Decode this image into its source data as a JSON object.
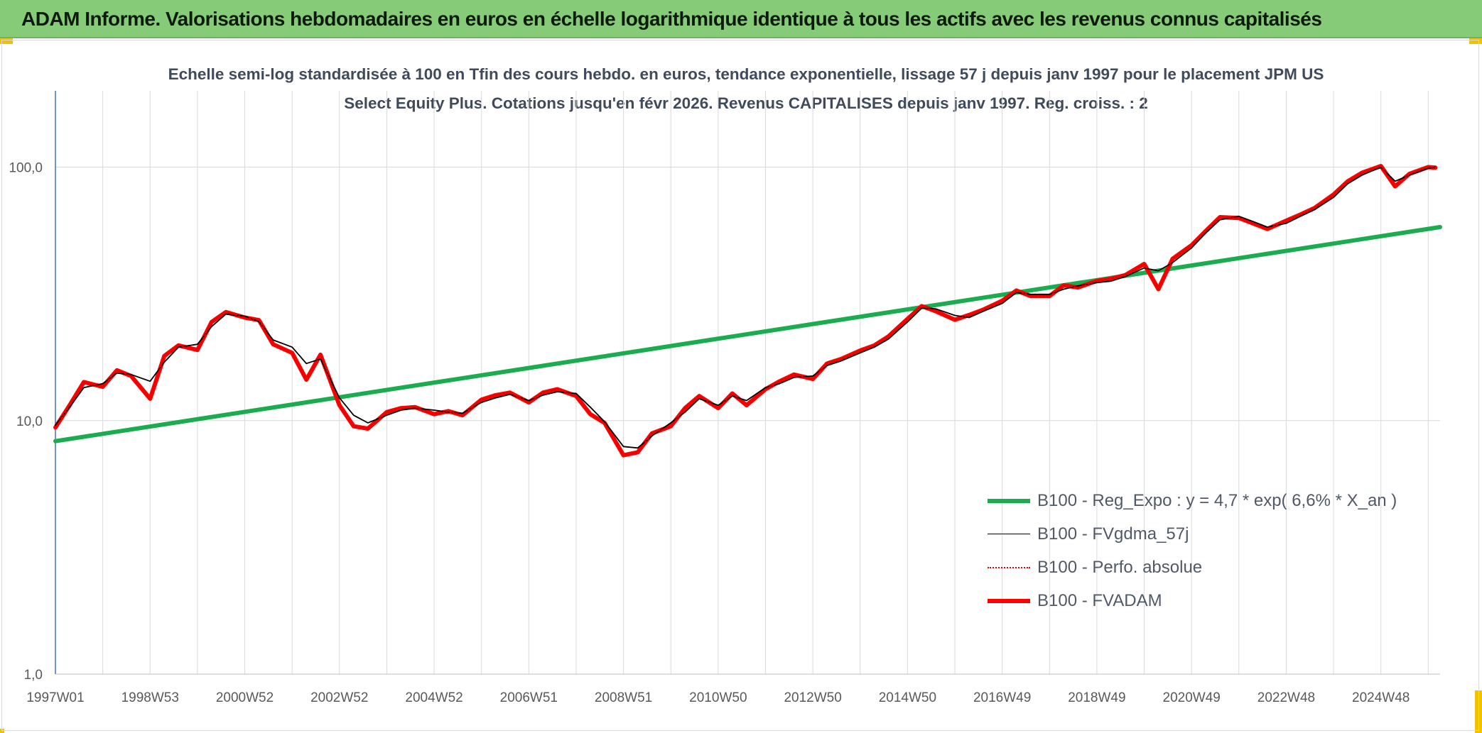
{
  "header": {
    "title": "ADAM Informe. Valorisations hebdomadaires en euros en échelle logarithmique identique à tous les actifs avec les revenus connus capitalisés"
  },
  "chart_data": {
    "type": "line",
    "title": "Echelle semi-log standardisée à 100 en Tfin des cours hebdo. en euros, tendance exponentielle, lissage 57 j depuis janv 1997 pour le placement JPM US Select Equity Plus. Cotations jusqu'en févr 2026. Revenus CAPITALISES depuis janv 1997. Reg. croiss. : 2",
    "xlabel": "",
    "ylabel": "",
    "y_scale": "log",
    "ylim": [
      1,
      200
    ],
    "y_ticks": [
      "1,0",
      "10,0",
      "100,0"
    ],
    "xlim": [
      1997.0,
      2026.25
    ],
    "x_tick_labels": [
      "1997W01",
      "1998W53",
      "2000W52",
      "2002W52",
      "2004W52",
      "2006W51",
      "2008W51",
      "2010W50",
      "2012W50",
      "2014W50",
      "2016W49",
      "2018W49",
      "2020W49",
      "2022W48",
      "2024W48"
    ],
    "x_tick_years": [
      1997.0,
      1999.0,
      2001.0,
      2003.0,
      2005.0,
      2007.0,
      2009.0,
      2011.0,
      2013.0,
      2015.0,
      2017.0,
      2019.0,
      2021.0,
      2023.0,
      2025.0
    ],
    "grid": true,
    "legend_position": "bottom-right",
    "series": [
      {
        "name": "B100 - Reg_Expo : y = 4,7 * exp( 6,6% *  X_an )",
        "color": "#1aac4e",
        "style": "thick",
        "x": [
          1997.0,
          2026.25
        ],
        "y": [
          8.3,
          58.0
        ]
      },
      {
        "name": "B100 - FVgdma_57j",
        "color": "#000000",
        "style": "thin",
        "x": [
          1997.0,
          1997.3,
          1997.6,
          1998.0,
          1998.3,
          1998.6,
          1999.0,
          1999.3,
          1999.6,
          2000.0,
          2000.3,
          2000.6,
          2001.0,
          2001.3,
          2001.6,
          2002.0,
          2002.3,
          2002.6,
          2003.0,
          2003.3,
          2003.6,
          2004.0,
          2004.3,
          2004.6,
          2005.0,
          2005.3,
          2005.6,
          2006.0,
          2006.3,
          2006.6,
          2007.0,
          2007.3,
          2007.6,
          2008.0,
          2008.3,
          2008.6,
          2009.0,
          2009.3,
          2009.6,
          2010.0,
          2010.3,
          2010.6,
          2011.0,
          2011.3,
          2011.6,
          2012.0,
          2012.3,
          2012.6,
          2013.0,
          2013.3,
          2013.6,
          2014.0,
          2014.3,
          2014.6,
          2015.0,
          2015.3,
          2015.6,
          2016.0,
          2016.3,
          2016.6,
          2017.0,
          2017.3,
          2017.6,
          2018.0,
          2018.3,
          2018.6,
          2019.0,
          2019.3,
          2019.6,
          2020.0,
          2020.3,
          2020.6,
          2021.0,
          2021.3,
          2021.6,
          2022.0,
          2022.3,
          2022.6,
          2023.0,
          2023.3,
          2023.6,
          2024.0,
          2024.3,
          2024.6,
          2025.0,
          2025.3,
          2025.6,
          2026.0,
          2026.15
        ],
        "y": [
          9.6,
          11.3,
          13.5,
          14.0,
          15.4,
          15.2,
          14.3,
          17.0,
          19.5,
          20.0,
          23.5,
          26.3,
          25.8,
          24.6,
          20.8,
          19.5,
          16.8,
          17.5,
          12.3,
          10.5,
          9.8,
          10.5,
          11.0,
          11.2,
          11.0,
          10.8,
          10.7,
          11.8,
          12.3,
          12.7,
          12.0,
          12.6,
          13.0,
          12.8,
          11.3,
          9.9,
          7.9,
          7.8,
          8.7,
          9.8,
          10.8,
          12.2,
          11.5,
          12.5,
          12.0,
          13.5,
          14.0,
          14.8,
          15.0,
          16.5,
          17.2,
          18.5,
          19.5,
          21.0,
          24.5,
          27.8,
          27.6,
          26.0,
          25.5,
          27.0,
          29.0,
          32.0,
          31.5,
          31.5,
          33.0,
          34.0,
          35.0,
          35.5,
          37.0,
          40.0,
          39.0,
          42.0,
          48.0,
          55.0,
          62.0,
          64.0,
          61.0,
          58.0,
          60.0,
          64.0,
          68.0,
          76.0,
          86.0,
          93.0,
          100.0,
          88.0,
          93.0,
          99.0,
          100.0
        ]
      },
      {
        "name": "B100 - Perfo. absolue",
        "color": "#e00000",
        "style": "dotted",
        "x": [
          1997.0,
          1997.3,
          1997.6,
          1998.0,
          1998.3,
          1998.6,
          1999.0,
          1999.3,
          1999.6,
          2000.0,
          2000.3,
          2000.6,
          2001.0,
          2001.3,
          2001.6,
          2002.0,
          2002.3,
          2002.6,
          2003.0,
          2003.3,
          2003.6,
          2004.0,
          2004.3,
          2004.6,
          2005.0,
          2005.3,
          2005.6,
          2006.0,
          2006.3,
          2006.6,
          2007.0,
          2007.3,
          2007.6,
          2008.0,
          2008.3,
          2008.6,
          2009.0,
          2009.3,
          2009.6,
          2010.0,
          2010.3,
          2010.6,
          2011.0,
          2011.3,
          2011.6,
          2012.0,
          2012.3,
          2012.6,
          2013.0,
          2013.3,
          2013.6,
          2014.0,
          2014.3,
          2014.6,
          2015.0,
          2015.3,
          2015.6,
          2016.0,
          2016.3,
          2016.6,
          2017.0,
          2017.3,
          2017.6,
          2018.0,
          2018.3,
          2018.6,
          2019.0,
          2019.3,
          2019.6,
          2020.0,
          2020.3,
          2020.6,
          2021.0,
          2021.3,
          2021.6,
          2022.0,
          2022.3,
          2022.6,
          2023.0,
          2023.3,
          2023.6,
          2024.0,
          2024.3,
          2024.6,
          2025.0,
          2025.3,
          2025.6,
          2026.0,
          2026.15
        ],
        "y": [
          9.4,
          11.5,
          14.2,
          13.6,
          15.8,
          15.0,
          12.2,
          18.0,
          19.8,
          19.0,
          24.5,
          26.8,
          25.5,
          24.9,
          20.0,
          18.5,
          14.5,
          18.2,
          11.5,
          9.5,
          9.3,
          10.8,
          11.2,
          11.3,
          10.6,
          10.9,
          10.5,
          12.1,
          12.6,
          12.9,
          11.8,
          12.9,
          13.3,
          12.5,
          10.6,
          9.8,
          7.3,
          7.5,
          8.9,
          9.5,
          11.2,
          12.5,
          11.2,
          12.8,
          11.5,
          13.3,
          14.3,
          15.2,
          14.6,
          16.8,
          17.5,
          18.9,
          19.8,
          21.5,
          25.2,
          28.3,
          27.0,
          25.0,
          26.1,
          27.4,
          29.7,
          32.6,
          31.0,
          31.0,
          34.2,
          33.5,
          35.6,
          36.3,
          37.5,
          41.5,
          33.0,
          43.5,
          49.2,
          56.0,
          63.5,
          63.0,
          60.0,
          57.0,
          61.5,
          65.0,
          69.0,
          78.0,
          88.0,
          95.0,
          101.0,
          84.0,
          94.0,
          100.0,
          99.5
        ]
      },
      {
        "name": "B100 - FVADAM",
        "color": "#ff0000",
        "style": "thick",
        "x": [
          1997.0,
          1997.3,
          1997.6,
          1998.0,
          1998.3,
          1998.6,
          1999.0,
          1999.3,
          1999.6,
          2000.0,
          2000.3,
          2000.6,
          2001.0,
          2001.3,
          2001.6,
          2002.0,
          2002.3,
          2002.6,
          2003.0,
          2003.3,
          2003.6,
          2004.0,
          2004.3,
          2004.6,
          2005.0,
          2005.3,
          2005.6,
          2006.0,
          2006.3,
          2006.6,
          2007.0,
          2007.3,
          2007.6,
          2008.0,
          2008.3,
          2008.6,
          2009.0,
          2009.3,
          2009.6,
          2010.0,
          2010.3,
          2010.6,
          2011.0,
          2011.3,
          2011.6,
          2012.0,
          2012.3,
          2012.6,
          2013.0,
          2013.3,
          2013.6,
          2014.0,
          2014.3,
          2014.6,
          2015.0,
          2015.3,
          2015.6,
          2016.0,
          2016.3,
          2016.6,
          2017.0,
          2017.3,
          2017.6,
          2018.0,
          2018.3,
          2018.6,
          2019.0,
          2019.3,
          2019.6,
          2020.0,
          2020.3,
          2020.6,
          2021.0,
          2021.3,
          2021.6,
          2022.0,
          2022.3,
          2022.6,
          2023.0,
          2023.3,
          2023.6,
          2024.0,
          2024.3,
          2024.6,
          2025.0,
          2025.3,
          2025.6,
          2026.0,
          2026.15
        ],
        "y": [
          9.4,
          11.5,
          14.2,
          13.6,
          15.8,
          15.0,
          12.2,
          18.0,
          19.8,
          19.0,
          24.5,
          26.8,
          25.5,
          24.9,
          20.0,
          18.5,
          14.5,
          18.2,
          11.5,
          9.5,
          9.3,
          10.8,
          11.2,
          11.3,
          10.6,
          10.9,
          10.5,
          12.1,
          12.6,
          12.9,
          11.8,
          12.9,
          13.3,
          12.5,
          10.6,
          9.8,
          7.3,
          7.5,
          8.9,
          9.5,
          11.2,
          12.5,
          11.2,
          12.8,
          11.5,
          13.3,
          14.3,
          15.2,
          14.6,
          16.8,
          17.5,
          18.9,
          19.8,
          21.5,
          25.2,
          28.3,
          27.0,
          25.0,
          26.1,
          27.4,
          29.7,
          32.6,
          31.0,
          31.0,
          34.2,
          33.5,
          35.6,
          36.3,
          37.5,
          41.5,
          33.0,
          43.5,
          49.2,
          56.0,
          63.5,
          63.0,
          60.0,
          57.0,
          61.5,
          65.0,
          69.0,
          78.0,
          88.0,
          95.0,
          101.0,
          84.0,
          94.0,
          100.0,
          99.5
        ]
      }
    ]
  }
}
